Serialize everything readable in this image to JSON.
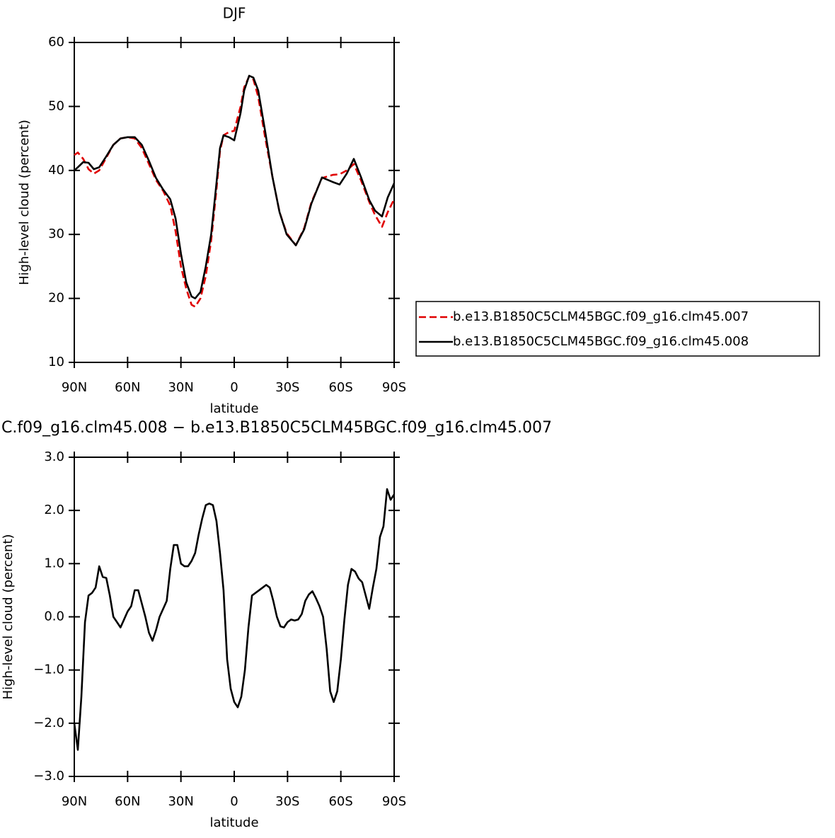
{
  "chart_data": [
    {
      "type": "line",
      "title": "DJF",
      "xlabel": "latitude",
      "ylabel": "High-level cloud (percent)",
      "x": [
        90,
        88,
        85,
        82,
        79,
        76,
        72,
        68,
        64,
        60,
        56,
        52,
        48,
        44,
        40,
        36,
        33,
        30,
        27,
        24,
        22,
        19,
        16,
        13,
        10,
        8,
        6,
        3,
        0,
        -3.6,
        -5.6,
        -8.4,
        -10.8,
        -13.5,
        -17.5,
        -21.5,
        -25.5,
        -29.5,
        -34.7,
        -39.4,
        -43.4,
        -49.4,
        -55.4,
        -59.3,
        -63.3,
        -67.3,
        -71.3,
        -76.1,
        -79.3,
        -83.2,
        -86.4,
        -90
      ],
      "series": [
        {
          "name": "b.e13.B1850C5CLM45BGC.f09_g16.clm45.007",
          "color": "#e00000",
          "dash": "dashed",
          "values": [
            42.4,
            42.8,
            41.8,
            40.2,
            39.5,
            40.0,
            42.0,
            44.0,
            45.0,
            45.2,
            45.0,
            43.5,
            41.0,
            38.5,
            36.8,
            34.5,
            30.5,
            25.0,
            21.5,
            19.0,
            18.7,
            20.0,
            23.5,
            29.0,
            37.0,
            43.0,
            45.5,
            46.0,
            46.2,
            50.0,
            53.0,
            54.7,
            54.2,
            51.5,
            45.0,
            39.0,
            33.5,
            30.2,
            28.3,
            31.0,
            35.0,
            38.8,
            39.3,
            39.4,
            40.0,
            41.0,
            38.5,
            35.0,
            33.0,
            31.2,
            33.5,
            35.5
          ]
        },
        {
          "name": "b.e13.B1850C5CLM45BGC.f09_g16.clm45.008",
          "color": "#000000",
          "dash": "solid",
          "values": [
            40.0,
            40.5,
            41.3,
            41.2,
            40.2,
            40.5,
            42.2,
            44.0,
            45.0,
            45.2,
            45.2,
            44.0,
            41.5,
            38.8,
            37.0,
            35.5,
            32.5,
            27.0,
            22.5,
            20.3,
            20.0,
            21.0,
            25.0,
            30.0,
            38.0,
            43.5,
            45.5,
            45.2,
            44.7,
            49.0,
            52.5,
            54.8,
            54.5,
            52.5,
            46.0,
            39.0,
            33.5,
            30.0,
            28.3,
            30.8,
            34.8,
            38.9,
            38.2,
            37.8,
            39.5,
            41.8,
            39.0,
            35.3,
            33.7,
            32.8,
            35.8,
            38.0
          ]
        }
      ],
      "xlim": [
        90,
        -90
      ],
      "xticks": [
        {
          "value": 90,
          "label": "90N"
        },
        {
          "value": 60,
          "label": "60N"
        },
        {
          "value": 30,
          "label": "30N"
        },
        0,
        {
          "value": -30,
          "label": "30S"
        },
        {
          "value": -60,
          "label": "60S"
        },
        {
          "value": -90,
          "label": "90S"
        }
      ],
      "ylim": [
        10,
        60
      ],
      "yticks": [
        10,
        20,
        30,
        40,
        50,
        60
      ],
      "legend": "right"
    },
    {
      "type": "line",
      "title": "C.f09_g16.clm45.008 − b.e13.B1850C5CLM45BGC.f09_g16.clm45.007",
      "xlabel": "latitude",
      "ylabel": "High-level cloud (percent)",
      "x": [
        90,
        88,
        86,
        84,
        82,
        80,
        78,
        76,
        74,
        72,
        70,
        68,
        66,
        64,
        62,
        60,
        58,
        56,
        54,
        52,
        50,
        48,
        46,
        44,
        42,
        40,
        38,
        36,
        34,
        32,
        30,
        28,
        26,
        24,
        22,
        20,
        18,
        16,
        14,
        12,
        10,
        8,
        6,
        4,
        2,
        0,
        -2,
        -4,
        -6,
        -8,
        -10,
        -12,
        -14,
        -16,
        -18,
        -20,
        -22,
        -24,
        -26,
        -28,
        -30,
        -32,
        -34,
        -36,
        -38,
        -40,
        -42,
        -44,
        -46,
        -48,
        -50,
        -52,
        -54,
        -56,
        -58,
        -60,
        -62,
        -64,
        -66,
        -68,
        -70,
        -72,
        -74,
        -76,
        -78,
        -80,
        -82,
        -84,
        -86,
        -88,
        -90
      ],
      "series": [
        {
          "color": "#000000",
          "dash": "solid",
          "values": [
            -2.0,
            -2.5,
            -1.5,
            -0.1,
            0.4,
            0.45,
            0.55,
            0.95,
            0.75,
            0.73,
            0.4,
            0.0,
            -0.1,
            -0.2,
            -0.05,
            0.1,
            0.2,
            0.5,
            0.5,
            0.25,
            0.0,
            -0.3,
            -0.45,
            -0.25,
            0.0,
            0.15,
            0.3,
            0.9,
            1.35,
            1.35,
            1.0,
            0.95,
            0.95,
            1.05,
            1.2,
            1.55,
            1.85,
            2.1,
            2.13,
            2.1,
            1.8,
            1.2,
            0.5,
            -0.8,
            -1.35,
            -1.6,
            -1.7,
            -1.5,
            -1.0,
            -0.2,
            0.4,
            0.45,
            0.5,
            0.55,
            0.6,
            0.55,
            0.3,
            0.0,
            -0.18,
            -0.2,
            -0.1,
            -0.05,
            -0.07,
            -0.05,
            0.05,
            0.3,
            0.42,
            0.48,
            0.35,
            0.2,
            0.0,
            -0.6,
            -1.4,
            -1.6,
            -1.4,
            -0.8,
            -0.05,
            0.6,
            0.9,
            0.85,
            0.72,
            0.65,
            0.4,
            0.15,
            0.55,
            0.9,
            1.5,
            1.7,
            2.4,
            2.2,
            2.3
          ]
        }
      ],
      "xlim": [
        90,
        -90
      ],
      "xticks": [
        {
          "value": 90,
          "label": "90N"
        },
        {
          "value": 60,
          "label": "60N"
        },
        {
          "value": 30,
          "label": "30N"
        },
        0,
        {
          "value": -30,
          "label": "30S"
        },
        {
          "value": -60,
          "label": "60S"
        },
        {
          "value": -90,
          "label": "90S"
        }
      ],
      "ylim": [
        -3,
        3
      ],
      "yticks": [
        {
          "value": -3,
          "label": "−3.0"
        },
        {
          "value": -2,
          "label": "−2.0"
        },
        {
          "value": -1,
          "label": "−1.0"
        },
        {
          "value": 0,
          "label": "0.0"
        },
        {
          "value": 1,
          "label": "1.0"
        },
        {
          "value": 2,
          "label": "2.0"
        },
        {
          "value": 3,
          "label": "3.0"
        }
      ]
    }
  ]
}
